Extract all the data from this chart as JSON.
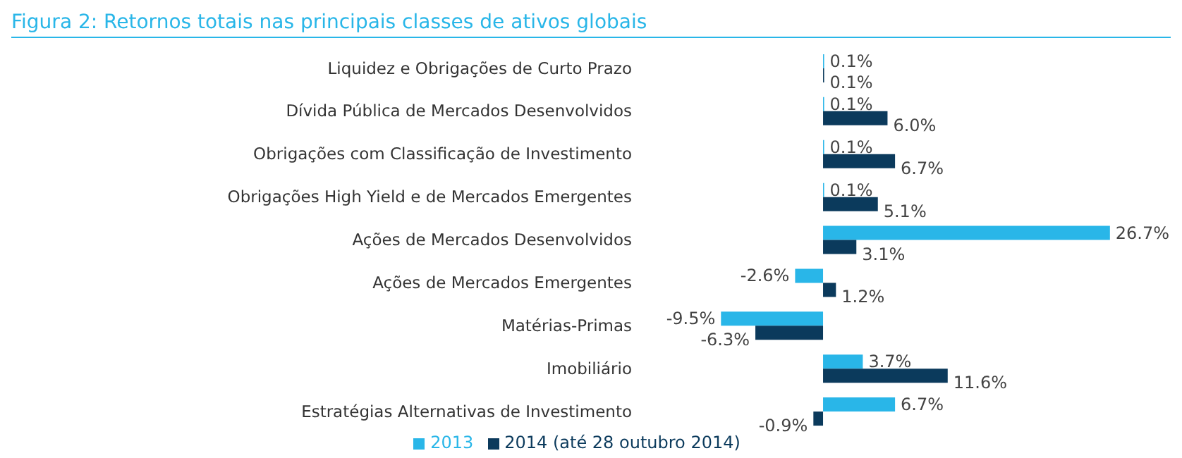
{
  "chart_data": {
    "type": "bar",
    "orientation": "horizontal",
    "title": "Figura 2: Retornos totais nas principais classes de ativos globais",
    "categories": [
      "Liquidez e Obrigações de Curto Prazo",
      "Dívida Pública de Mercados Desenvolvidos",
      "Obrigações com Classificação de Investimento",
      "Obrigações High Yield e de Mercados Emergentes",
      "Ações de Mercados Desenvolvidos",
      "Ações de Mercados Emergentes",
      "Matérias-Primas",
      "Imobiliário",
      "Estratégias Alternativas de Investimento"
    ],
    "series": [
      {
        "name": "2013",
        "color": "#29b6e8",
        "values": [
          0.1,
          0.1,
          0.1,
          0.1,
          26.7,
          -2.6,
          -9.5,
          3.7,
          6.7
        ],
        "value_labels": [
          "0.1%",
          "0.1%",
          "0.1%",
          "0.1%",
          "26.7%",
          "-2.6%",
          "-9.5%",
          "3.7%",
          "6.7%"
        ]
      },
      {
        "name": "2014 (até 28 outubro 2014)",
        "color": "#0b3a5c",
        "values": [
          0.1,
          6.0,
          6.7,
          5.1,
          3.1,
          1.2,
          -6.3,
          11.6,
          -0.9
        ],
        "value_labels": [
          "0.1%",
          "6.0%",
          "6.7%",
          "5.1%",
          "3.1%",
          "1.2%",
          "-6.3%",
          "11.6%",
          "-0.9%"
        ]
      }
    ],
    "legend": "bottom"
  }
}
